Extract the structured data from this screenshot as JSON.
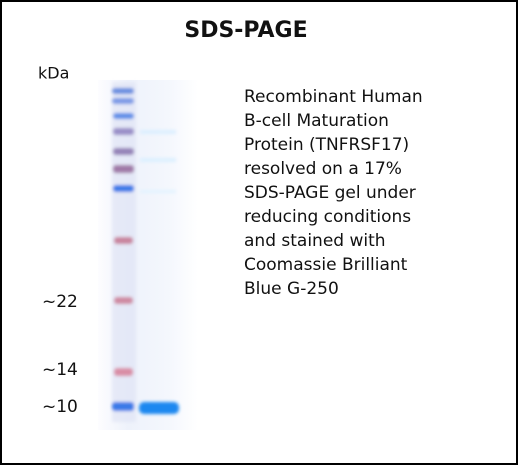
{
  "header": {
    "title": "SDS-PAGE"
  },
  "axis": {
    "unit": "kDa",
    "markers": [
      "~22",
      "~14",
      "~10"
    ]
  },
  "description": {
    "lines": [
      "Recombinant Human",
      "B-cell Maturation",
      "Protein (TNFRSF17)",
      "resolved on a 17%",
      "SDS-PAGE gel under",
      "reducing conditions",
      "and stained with",
      "Coomassie Brilliant",
      "Blue G-250"
    ]
  }
}
